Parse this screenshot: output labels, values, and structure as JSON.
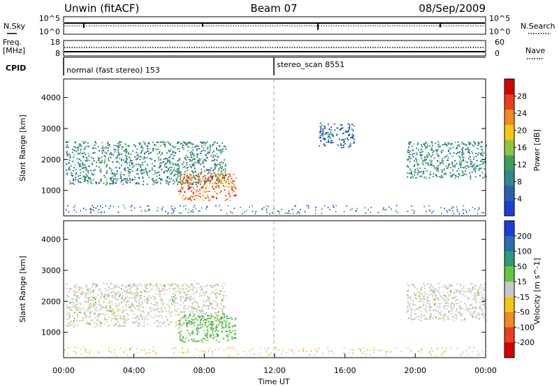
{
  "header": {
    "station": "Unwin (fitACF)",
    "beam": "Beam 07",
    "date": "08/Sep/2009"
  },
  "summary_panels": {
    "nsky_label": "N.Sky",
    "nsearch_label": "N.Search",
    "noise_ticks": [
      "10^5",
      "10^0"
    ],
    "freq_label": "Freq.",
    "freq_unit": "[MHz]",
    "freq_ticks": [
      "18",
      "8"
    ],
    "nave_label": "Nave",
    "nave_ticks": [
      "60",
      "0"
    ],
    "cpid_label": "CPID",
    "cpid_segments": [
      {
        "label": "normal (fast stereo) 153",
        "start_hour": 0
      },
      {
        "label": "stereo_scan 8551",
        "start_hour": 12
      }
    ]
  },
  "chart_data": [
    {
      "type": "heatmap",
      "name": "power",
      "ylabel": "Slant Range [km]",
      "xlabel": "",
      "xlim_hours": [
        0,
        24
      ],
      "ylim": [
        180,
        4600
      ],
      "y_ticks": [
        1000,
        2000,
        3000,
        4000
      ],
      "colorbar": {
        "label": "Power [dB]",
        "ticks": [
          4,
          8,
          12,
          16,
          20,
          24,
          28
        ],
        "range": [
          0,
          32
        ],
        "colors": [
          "#1f3ddb",
          "#2a5fb0",
          "#2f8a8a",
          "#3da05a",
          "#8cc63f",
          "#f5c518",
          "#f08a24",
          "#e8401c",
          "#d40000"
        ]
      },
      "echo_regions": [
        {
          "hour_range": [
            0.1,
            9.2
          ],
          "range_km": [
            1200,
            2600
          ],
          "level": 10
        },
        {
          "hour_range": [
            6.5,
            9.8
          ],
          "range_km": [
            700,
            1600
          ],
          "level": 24
        },
        {
          "hour_range": [
            19.5,
            24
          ],
          "range_km": [
            1400,
            2600
          ],
          "level": 10
        },
        {
          "hour_range": [
            14.5,
            16.5
          ],
          "range_km": [
            2400,
            3200
          ],
          "level": 6
        }
      ]
    },
    {
      "type": "heatmap",
      "name": "velocity",
      "ylabel": "Slant Range [km]",
      "xlabel": "Time UT",
      "xlim_hours": [
        0,
        24
      ],
      "ylim": [
        180,
        4600
      ],
      "y_ticks": [
        1000,
        2000,
        3000,
        4000
      ],
      "x_ticks": [
        "00:00",
        "04:00",
        "08:00",
        "12:00",
        "16:00",
        "20:00",
        "00:00"
      ],
      "colorbar": {
        "label": "Velocity [m s^-1]",
        "ticks": [
          "200",
          "100",
          "50",
          "15",
          "-15",
          "-50",
          "-100",
          "-200"
        ],
        "colors": [
          "#1f3ddb",
          "#2a6fb0",
          "#2f9a7a",
          "#62c83a",
          "#c8c8c8",
          "#f5c518",
          "#f08a24",
          "#e8401c",
          "#d40000"
        ]
      },
      "echo_regions": [
        {
          "hour_range": [
            0.1,
            9.2
          ],
          "range_km": [
            1200,
            2600
          ],
          "velocity": 0
        },
        {
          "hour_range": [
            6.5,
            9.8
          ],
          "range_km": [
            700,
            1600
          ],
          "velocity": 80
        },
        {
          "hour_range": [
            19.5,
            24
          ],
          "range_km": [
            1400,
            2600
          ],
          "velocity": 0
        }
      ]
    }
  ]
}
